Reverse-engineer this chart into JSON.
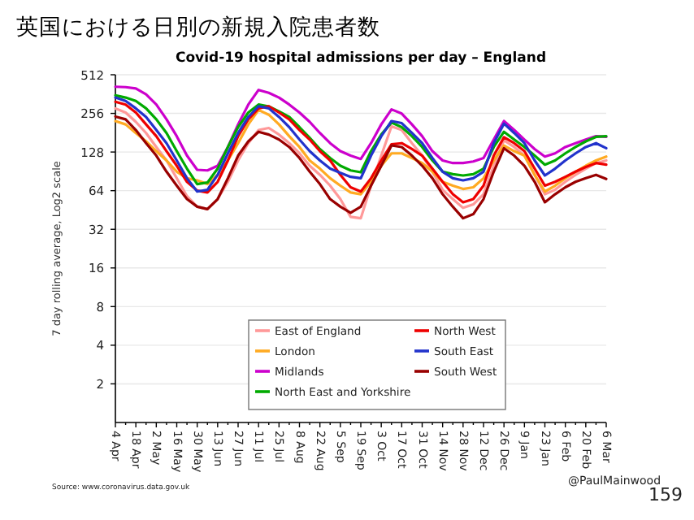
{
  "chart_data": {
    "type": "line",
    "title": "英国における日別の新規入院患者数",
    "subtitle": "Covid-19 hospital admissions per day – England",
    "ylabel": "7 day rolling average, Log2 scale",
    "log": "y",
    "grid": "y",
    "legend": "bottom",
    "line_style": "solid",
    "marker": "none",
    "ylim": [
      1,
      512
    ],
    "yticks": [
      2,
      4,
      8,
      16,
      32,
      64,
      128,
      256,
      512
    ],
    "categories": [
      "4 Apr",
      null,
      "18 Apr",
      null,
      "2 May",
      null,
      "16 May",
      null,
      "30 May",
      null,
      "13 Jun",
      null,
      "27 Jun",
      null,
      "11 Jul",
      null,
      "25 Jul",
      null,
      "8 Aug",
      null,
      "22 Aug",
      null,
      "5 Sep",
      null,
      "19 Sep",
      null,
      "3 Oct",
      null,
      "17 Oct",
      null,
      "31 Oct",
      null,
      "14 Nov",
      null,
      "28 Nov",
      null,
      "12 Dec",
      null,
      "26 Dec",
      null,
      "9 Jan",
      null,
      "23 Jan",
      null,
      "6 Feb",
      null,
      "20 Feb",
      null,
      "6 Mar"
    ],
    "series": [
      {
        "name": "East of England",
        "color": "#ff9999",
        "values": [
          280,
          260,
          220,
          180,
          140,
          110,
          80,
          58,
          48,
          46,
          55,
          75,
          110,
          150,
          190,
          197,
          175,
          150,
          125,
          100,
          85,
          70,
          55,
          40,
          39,
          70,
          120,
          203,
          190,
          150,
          120,
          90,
          65,
          55,
          47,
          50,
          60,
          100,
          158,
          140,
          120,
          85,
          60,
          65,
          75,
          85,
          95,
          105,
          110
        ]
      },
      {
        "name": "London",
        "color": "#ffaa22",
        "values": [
          223,
          210,
          180,
          155,
          130,
          110,
          90,
          80,
          77,
          72,
          85,
          110,
          150,
          210,
          272,
          250,
          210,
          170,
          140,
          110,
          95,
          80,
          70,
          62,
          60,
          75,
          100,
          125,
          125,
          115,
          105,
          90,
          75,
          70,
          66,
          68,
          80,
          110,
          144,
          130,
          120,
          85,
          63,
          70,
          80,
          90,
          100,
          110,
          118
        ]
      },
      {
        "name": "Midlands",
        "color": "#cc00cc",
        "values": [
          413,
          410,
          400,
          360,
          300,
          230,
          170,
          120,
          93,
          92,
          100,
          140,
          210,
          300,
          390,
          370,
          340,
          300,
          260,
          220,
          180,
          150,
          130,
          120,
          113,
          150,
          210,
          275,
          255,
          210,
          170,
          130,
          110,
          105,
          105,
          108,
          115,
          160,
          223,
          190,
          160,
          135,
          118,
          125,
          140,
          150,
          160,
          170,
          168
        ]
      },
      {
        "name": "North East and Yorkshire",
        "color": "#00aa00",
        "values": [
          354,
          340,
          320,
          280,
          230,
          180,
          130,
          95,
          72,
          74,
          95,
          140,
          200,
          260,
          300,
          290,
          265,
          240,
          200,
          165,
          135,
          115,
          100,
          92,
          89,
          130,
          175,
          217,
          200,
          170,
          140,
          110,
          90,
          86,
          84,
          86,
          95,
          140,
          184,
          160,
          140,
          120,
          102,
          110,
          125,
          140,
          155,
          168,
          170
        ]
      },
      {
        "name": "North West",
        "color": "#ee0000",
        "values": [
          315,
          300,
          260,
          210,
          170,
          130,
          100,
          75,
          64,
          62,
          75,
          110,
          170,
          230,
          280,
          291,
          260,
          230,
          190,
          160,
          130,
          110,
          85,
          68,
          63,
          80,
          110,
          147,
          150,
          135,
          120,
          95,
          75,
          60,
          52,
          55,
          70,
          120,
          167,
          150,
          130,
          95,
          70,
          75,
          82,
          90,
          98,
          105,
          102
        ]
      },
      {
        "name": "South East",
        "color": "#2233cc",
        "values": [
          340,
          320,
          280,
          240,
          190,
          150,
          110,
          80,
          63,
          65,
          85,
          125,
          180,
          240,
          291,
          280,
          240,
          200,
          160,
          130,
          110,
          95,
          88,
          82,
          80,
          120,
          170,
          223,
          215,
          180,
          150,
          115,
          90,
          80,
          77,
          80,
          90,
          150,
          213,
          180,
          150,
          110,
          84,
          95,
          110,
          125,
          140,
          150,
          137
        ]
      },
      {
        "name": "South West",
        "color": "#990000",
        "values": [
          242,
          230,
          190,
          150,
          120,
          90,
          70,
          55,
          48,
          46,
          55,
          80,
          120,
          155,
          184,
          175,
          160,
          140,
          115,
          90,
          72,
          55,
          48,
          43,
          48,
          70,
          100,
          144,
          140,
          120,
          100,
          80,
          60,
          48,
          39,
          42,
          55,
          90,
          137,
          120,
          100,
          75,
          52,
          60,
          68,
          75,
          80,
          85,
          79
        ]
      }
    ],
    "annotations": [
      "Source: www.coronavirus.data.gov.uk",
      "@PaulMainwood",
      "159"
    ]
  }
}
